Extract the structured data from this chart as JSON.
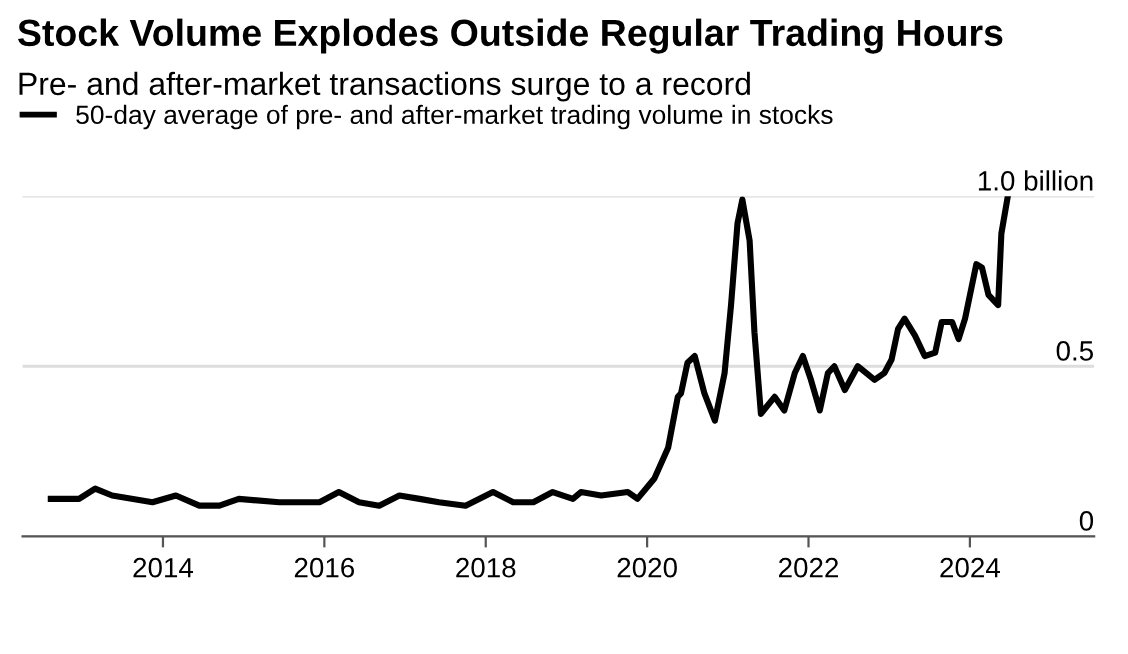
{
  "chart_data": {
    "type": "line",
    "title": "Stock Volume Explodes Outside Regular Trading Hours",
    "subtitle": "Pre- and after-market transactions surge to a record",
    "series": [
      {
        "name": "50-day average of pre- and after-market trading volume in stocks",
        "color": "#000000",
        "x": [
          2012.61,
          2012.96,
          2013.16,
          2013.37,
          2013.87,
          2014.16,
          2014.45,
          2014.7,
          2014.94,
          2015.44,
          2015.94,
          2016.18,
          2016.43,
          2016.68,
          2016.93,
          2017.18,
          2017.42,
          2017.75,
          2018.09,
          2018.34,
          2018.59,
          2018.83,
          2019.08,
          2019.18,
          2019.43,
          2019.76,
          2019.88,
          2020.09,
          2020.26,
          2020.38,
          2020.42,
          2020.5,
          2020.59,
          2020.71,
          2020.84,
          2020.96,
          2021.04,
          2021.12,
          2021.18,
          2021.27,
          2021.33,
          2021.41,
          2021.58,
          2021.7,
          2021.83,
          2021.93,
          2022.03,
          2022.14,
          2022.24,
          2022.32,
          2022.45,
          2022.61,
          2022.82,
          2022.94,
          2023.03,
          2023.11,
          2023.19,
          2023.32,
          2023.44,
          2023.57,
          2023.65,
          2023.78,
          2023.86,
          2023.94,
          2024.08,
          2024.15,
          2024.23,
          2024.35,
          2024.39,
          2024.47
        ],
        "values": [
          0.11,
          0.11,
          0.14,
          0.12,
          0.1,
          0.12,
          0.09,
          0.09,
          0.11,
          0.1,
          0.1,
          0.13,
          0.1,
          0.09,
          0.12,
          0.11,
          0.1,
          0.09,
          0.13,
          0.1,
          0.1,
          0.13,
          0.11,
          0.13,
          0.12,
          0.13,
          0.11,
          0.17,
          0.26,
          0.41,
          0.42,
          0.51,
          0.53,
          0.42,
          0.34,
          0.48,
          0.68,
          0.92,
          0.99,
          0.87,
          0.6,
          0.36,
          0.41,
          0.37,
          0.48,
          0.53,
          0.46,
          0.37,
          0.48,
          0.5,
          0.43,
          0.5,
          0.46,
          0.48,
          0.52,
          0.61,
          0.64,
          0.59,
          0.53,
          0.54,
          0.63,
          0.63,
          0.58,
          0.64,
          0.8,
          0.79,
          0.71,
          0.68,
          0.89,
          1.0
        ]
      }
    ],
    "xlim": [
      2012.26,
      2025.54
    ],
    "xticks": [
      2014,
      2016,
      2018,
      2020,
      2022,
      2024
    ],
    "ylim": [
      0,
      1.0
    ],
    "yticks": [
      0,
      0.5,
      {
        "value": 1.0,
        "label": "1.0 billion"
      }
    ],
    "grid": "y",
    "legend": "top left",
    "line_style": "solid",
    "marker": "none"
  }
}
